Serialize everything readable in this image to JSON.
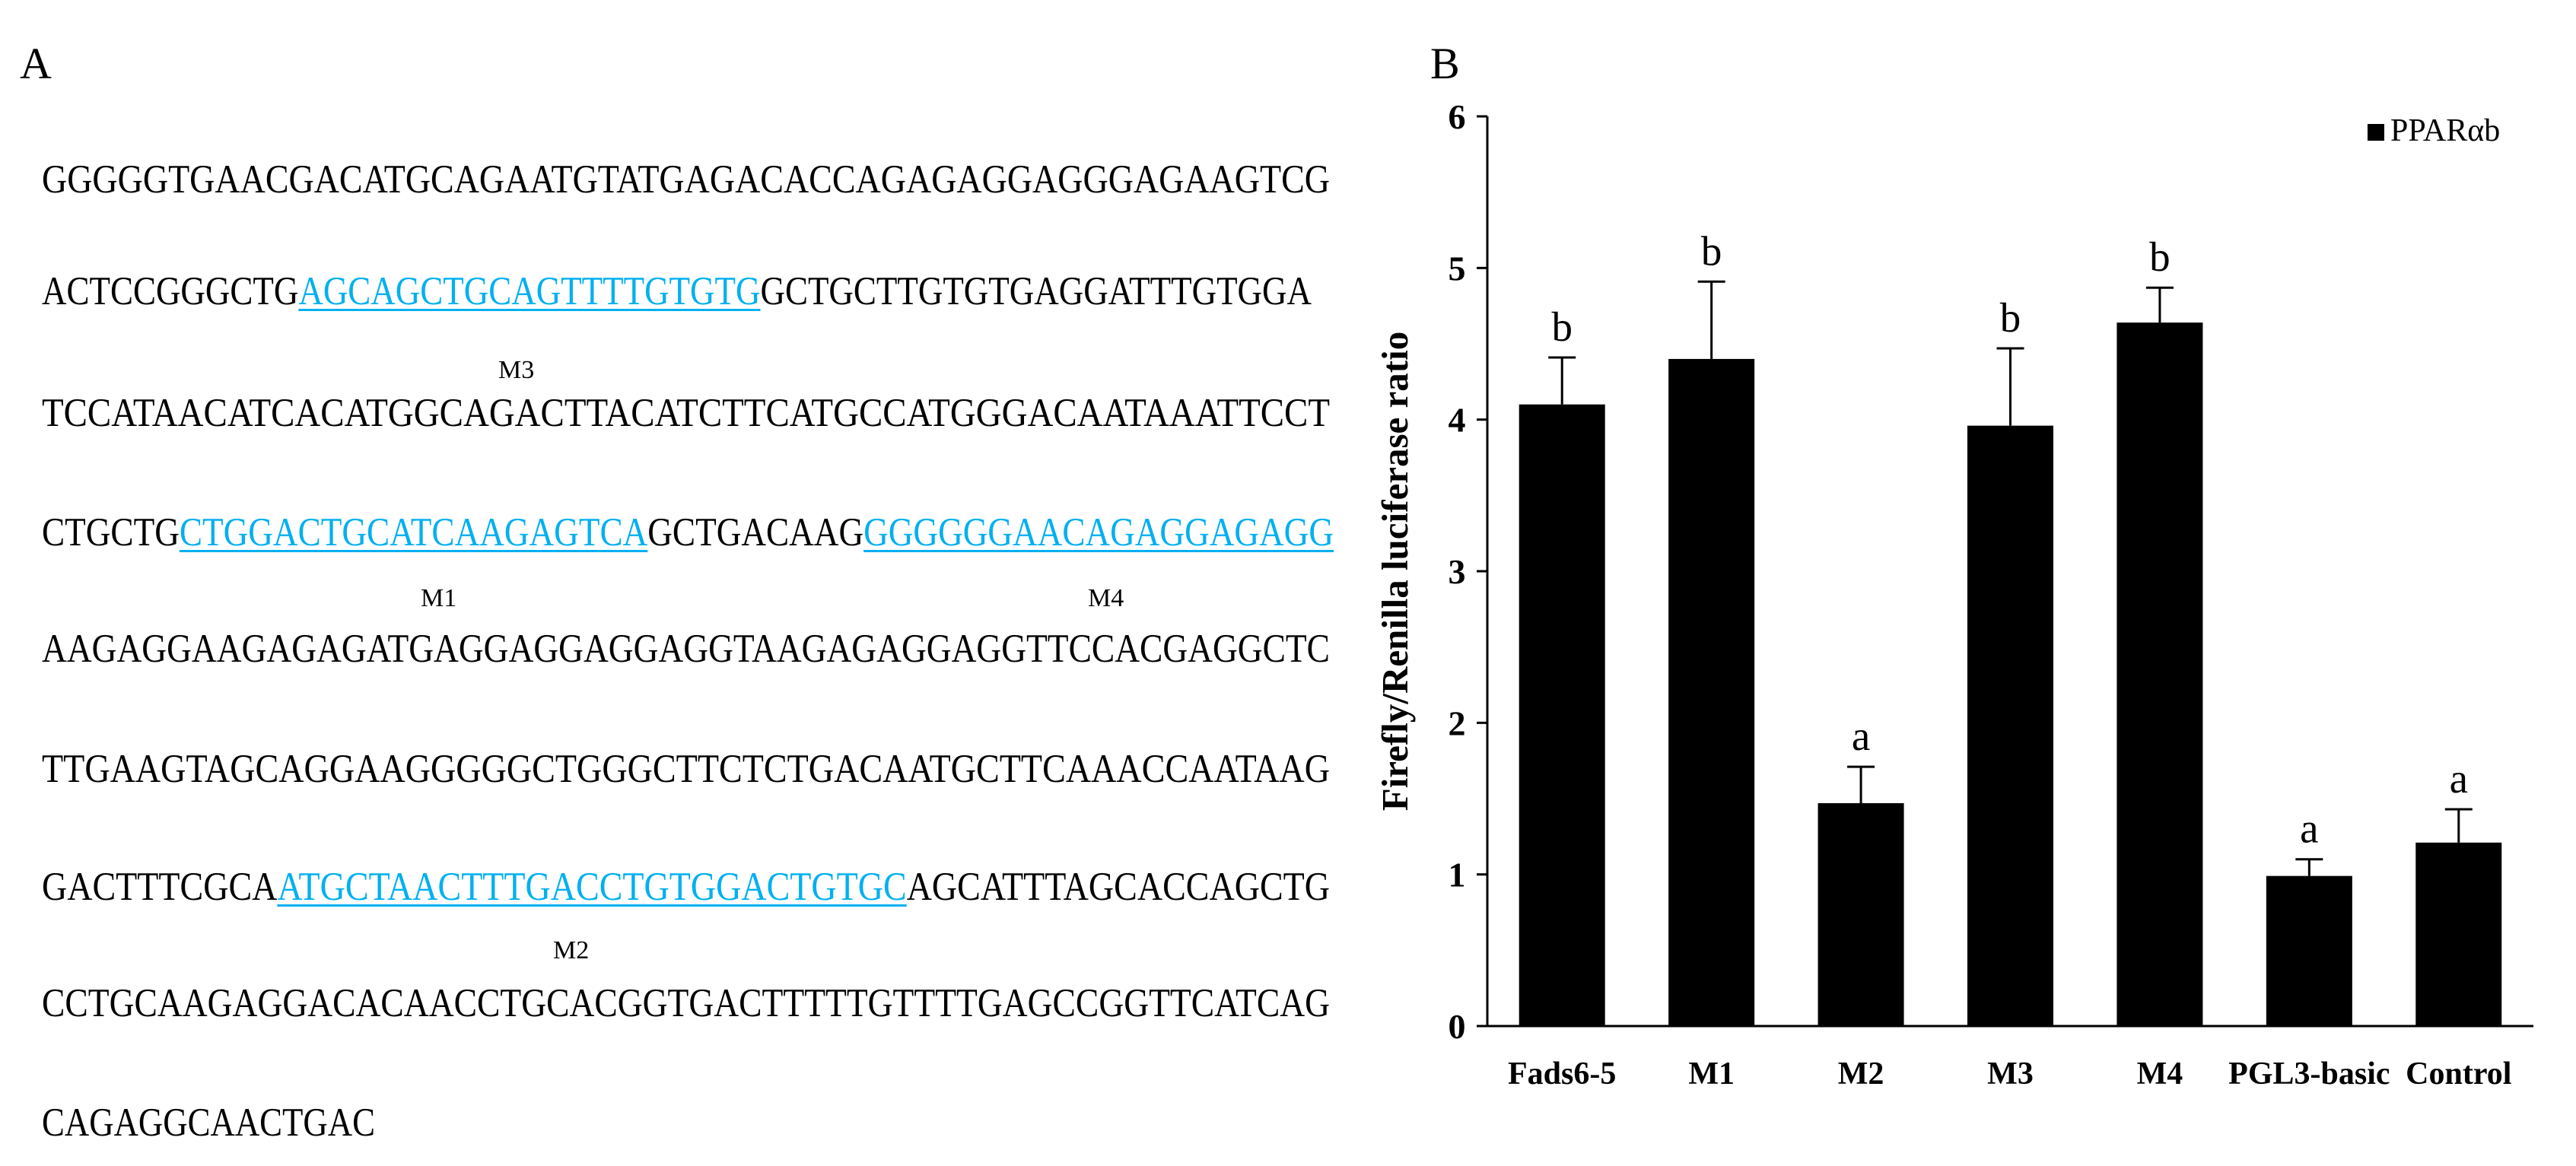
{
  "panel_a": {
    "letter": "A",
    "lines": [
      [
        {
          "t": "GGGGGTGAACGACATGCAGAATGTATGAGACACCAGAGAGGAGGGAGAAGTCG",
          "hl": false
        }
      ],
      [
        {
          "t": "ACTCCGGGCTG",
          "hl": false
        },
        {
          "t": "AGCAGCTGCAGTTTTGTGTG",
          "hl": true
        },
        {
          "t": "GCTGCTTGTGTGAGGATTTGTGGA",
          "hl": false
        }
      ],
      [
        {
          "t": "TCCATAACATCACATGGCAGACTTACATCTTCATGCCATGGGACAATAAATTCCT",
          "hl": false
        }
      ],
      [
        {
          "t": "CTGCTG",
          "hl": false
        },
        {
          "t": "CTGGACTGCATCAAGAGTCA",
          "hl": true
        },
        {
          "t": "GCTGACAAG",
          "hl": false
        },
        {
          "t": "GGGGGGAACAGAGGAGAGG",
          "hl": true
        }
      ],
      [
        {
          "t": "AAGAGGAAGAGAGATGAGGAGGAGGAGGTAAGAGAGGAGGTTCCACGAGGCTC",
          "hl": false
        }
      ],
      [
        {
          "t": "TTGAAGTAGCAGGAAGGGGGCTGGGCTTCTCTGACAATGCTTCAAACCAATAAG",
          "hl": false
        }
      ],
      [
        {
          "t": "GACTTTCGCA",
          "hl": false
        },
        {
          "t": "ATGCTAACTTTGACCTGTGGACTGTGC",
          "hl": true
        },
        {
          "t": "AGCATTTAGCACCAGCTG",
          "hl": false
        }
      ],
      [
        {
          "t": "CCTGCAAGAGGACACAACCTGCACGGTGACTTTTTGTTTTGAGCCGGTTCATCAG",
          "hl": false
        }
      ],
      [
        {
          "t": "CAGAGGCAACTGAC",
          "hl": false
        }
      ]
    ],
    "site_labels": [
      "M3",
      "M1",
      "M4",
      "M2"
    ]
  },
  "panel_b": {
    "letter": "B"
  },
  "chart_data": {
    "type": "bar",
    "categories": [
      "Fads6-5",
      "M1",
      "M2",
      "M3",
      "M4",
      "PGL3-basic",
      "Control"
    ],
    "series": [
      {
        "name": "PPARαb",
        "values": [
          4.1,
          4.4,
          1.47,
          3.96,
          4.64,
          0.99,
          1.21
        ],
        "errors": [
          0.31,
          0.51,
          0.24,
          0.51,
          0.23,
          0.11,
          0.22
        ],
        "significance": [
          "b",
          "b",
          "a",
          "b",
          "b",
          "a",
          "a"
        ]
      }
    ],
    "ylabel": "Firefly/Renilla luciferase ratio",
    "xlabel": "",
    "ylim": [
      0,
      6
    ],
    "yticks": [
      "0",
      "1",
      "2",
      "3",
      "4",
      "5",
      "6"
    ],
    "legend_position": "top-right",
    "grid": false,
    "colors": {
      "bar": "#000000",
      "highlight": "#00b0f0"
    }
  }
}
